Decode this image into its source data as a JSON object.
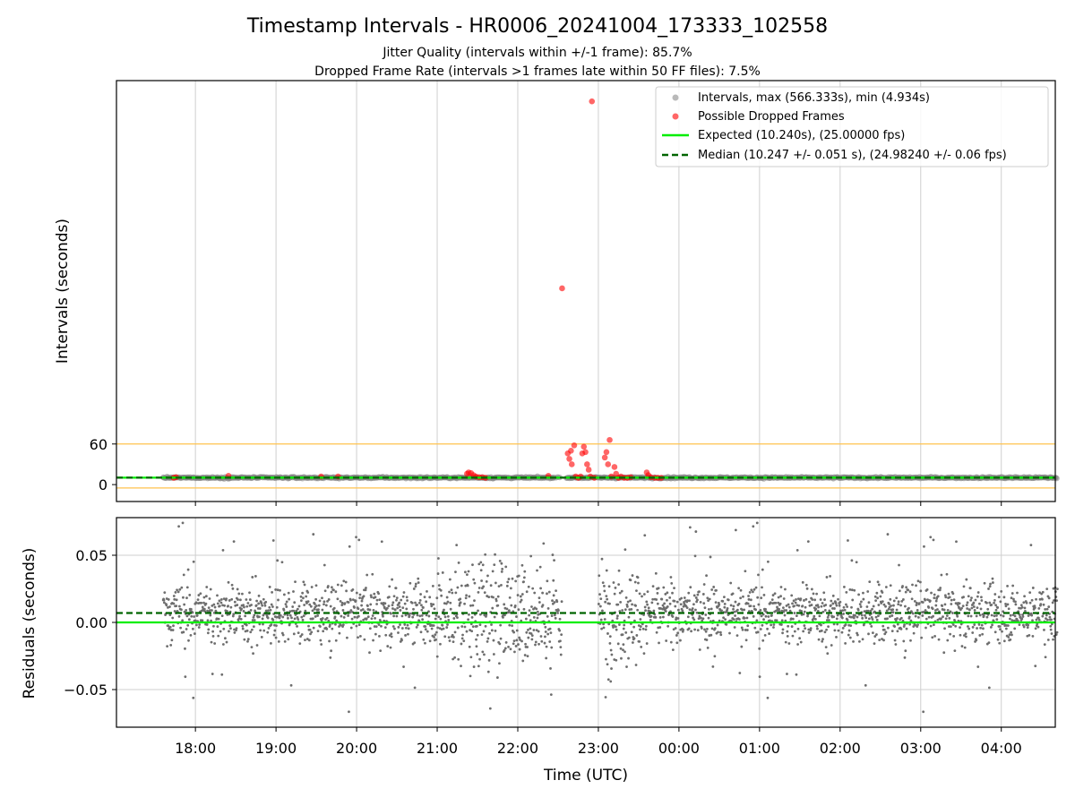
{
  "figure": {
    "title": "Timestamp Intervals - HR0006_20241004_173333_102558",
    "subtitle_1": "Jitter Quality (intervals within +/-1 frame): 85.7%",
    "subtitle_2": "Dropped Frame Rate (intervals >1 frames late within 50 FF files): 7.5%"
  },
  "chart_data": [
    {
      "type": "scatter",
      "panel": "top",
      "ylabel": "Intervals (seconds)",
      "yticks": [
        0,
        60
      ],
      "ylim": [
        -25,
        597
      ],
      "grid": "vertical",
      "legend_placement": "top-right",
      "x_unit": "hours since 00:00 UTC (values < 17.5 wrap to next day)",
      "reference_lines": [
        {
          "name": "threshold_upper",
          "y": 60,
          "color": "#ffc24d"
        },
        {
          "name": "threshold_lower",
          "y": -5,
          "color": "#ffc24d"
        },
        {
          "name": "expected",
          "y": 10.24,
          "color": "#00ee00",
          "style": "solid"
        },
        {
          "name": "median",
          "y": 10.247,
          "color": "#006400",
          "style": "dashed"
        }
      ],
      "series": [
        {
          "name": "Intervals, max (566.333s), min (4.934s)",
          "color": "#808080",
          "marker": "circle",
          "note": "dense band of ~10.25s intervals from 17:36 to 04:41 UTC",
          "x_range": [
            17.6,
            4.7
          ],
          "y_typical": 10.25
        },
        {
          "name": "Possible Dropped Frames",
          "color": "#ff0000",
          "marker": "circle",
          "points": [
            [
              17.73,
              10
            ],
            [
              17.76,
              11
            ],
            [
              18.41,
              13
            ],
            [
              19.56,
              12
            ],
            [
              19.77,
              12
            ],
            [
              21.37,
              16
            ],
            [
              21.39,
              18
            ],
            [
              21.42,
              17
            ],
            [
              21.45,
              14
            ],
            [
              21.48,
              12
            ],
            [
              21.52,
              11
            ],
            [
              21.56,
              11
            ],
            [
              21.6,
              10
            ],
            [
              22.38,
              13
            ],
            [
              22.55,
              290
            ],
            [
              22.62,
              46
            ],
            [
              22.64,
              38
            ],
            [
              22.66,
              50
            ],
            [
              22.67,
              30
            ],
            [
              22.7,
              58
            ],
            [
              22.72,
              12
            ],
            [
              22.75,
              10
            ],
            [
              22.78,
              12
            ],
            [
              22.8,
              46
            ],
            [
              22.82,
              56
            ],
            [
              22.84,
              48
            ],
            [
              22.86,
              30
            ],
            [
              22.88,
              22
            ],
            [
              22.9,
              12
            ],
            [
              22.92,
              566.333
            ],
            [
              22.95,
              10
            ],
            [
              23.08,
              40
            ],
            [
              23.1,
              48
            ],
            [
              23.12,
              30
            ],
            [
              23.14,
              66
            ],
            [
              23.16,
              12
            ],
            [
              23.2,
              26
            ],
            [
              23.22,
              16
            ],
            [
              23.25,
              10
            ],
            [
              23.28,
              12
            ],
            [
              23.32,
              10
            ],
            [
              23.36,
              10
            ],
            [
              23.4,
              11
            ],
            [
              23.6,
              18
            ],
            [
              23.62,
              14
            ],
            [
              23.65,
              11
            ],
            [
              23.7,
              10
            ],
            [
              23.74,
              10
            ],
            [
              23.78,
              10
            ]
          ]
        },
        {
          "name": "Expected (10.240s), (25.00000 fps)",
          "type": "line",
          "color": "#00ee00",
          "y": 10.24
        },
        {
          "name": "Median (10.247 +/- 0.051 s), (24.98240 +/- 0.06 fps)",
          "type": "line",
          "color": "#006400",
          "style": "dashed",
          "y": 10.247
        }
      ]
    },
    {
      "type": "scatter",
      "panel": "bottom",
      "xlabel": "Time (UTC)",
      "ylabel": "Residuals (seconds)",
      "xticks": [
        "18:00",
        "19:00",
        "20:00",
        "21:00",
        "22:00",
        "23:00",
        "00:00",
        "01:00",
        "02:00",
        "03:00",
        "04:00"
      ],
      "ytick_labels": [
        "0.05",
        "0.00",
        "−0.05"
      ],
      "yticks": [
        0.05,
        0.0,
        -0.05
      ],
      "ylim": [
        -0.078,
        0.078
      ],
      "grid": "both",
      "series": [
        {
          "name": "residuals",
          "color": "#6e6e6e",
          "marker": "dot",
          "typical_spread": 0.015,
          "offset": 0.007,
          "x_range": [
            17.6,
            4.7
          ]
        }
      ],
      "reference_lines": [
        {
          "name": "expected",
          "y": 0.0,
          "color": "#00ee00",
          "style": "solid"
        },
        {
          "name": "median",
          "y": 0.007,
          "color": "#006400",
          "style": "dashed"
        }
      ]
    }
  ]
}
